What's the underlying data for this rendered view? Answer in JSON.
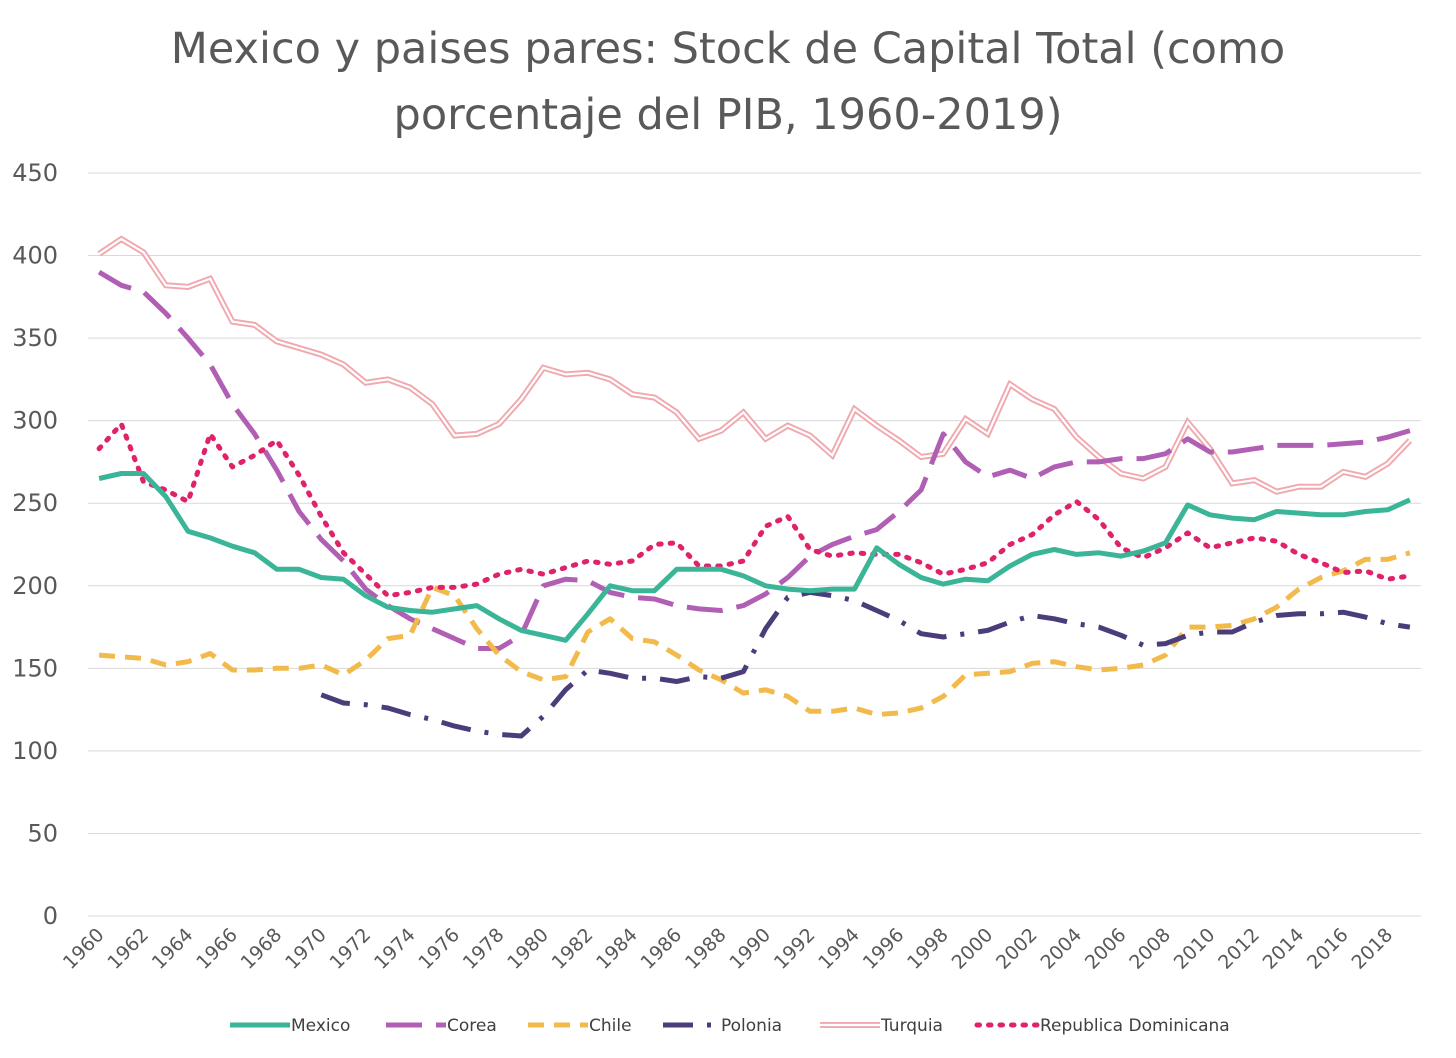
{
  "chart_data": {
    "type": "line",
    "title": "Mexico y paises pares: Stock de Capital Total (como porcentaje del PIB, 1960-2019)",
    "title_lines": [
      "Mexico y paises pares: Stock de Capital Total (como",
      "porcentaje del PIB, 1960-2019)"
    ],
    "xlabel": "",
    "ylabel": "",
    "ylim": [
      0,
      450
    ],
    "yticks": [
      0,
      50,
      100,
      150,
      200,
      250,
      300,
      350,
      400,
      450
    ],
    "x": [
      1960,
      1961,
      1962,
      1963,
      1964,
      1965,
      1966,
      1967,
      1968,
      1969,
      1970,
      1971,
      1972,
      1973,
      1974,
      1975,
      1976,
      1977,
      1978,
      1979,
      1980,
      1981,
      1982,
      1983,
      1984,
      1985,
      1986,
      1987,
      1988,
      1989,
      1990,
      1991,
      1992,
      1993,
      1994,
      1995,
      1996,
      1997,
      1998,
      1999,
      2000,
      2001,
      2002,
      2003,
      2004,
      2005,
      2006,
      2007,
      2008,
      2009,
      2010,
      2011,
      2012,
      2013,
      2014,
      2015,
      2016,
      2017,
      2018,
      2019
    ],
    "xticks": [
      1960,
      1962,
      1964,
      1966,
      1968,
      1970,
      1972,
      1974,
      1976,
      1978,
      1980,
      1982,
      1984,
      1986,
      1988,
      1990,
      1992,
      1994,
      1996,
      1998,
      2000,
      2002,
      2004,
      2006,
      2008,
      2010,
      2012,
      2014,
      2016,
      2018
    ],
    "grid": true,
    "legend_position": "bottom",
    "series": [
      {
        "name": "Mexico",
        "color": "#3bb597",
        "dash": "solid",
        "values": [
          265,
          268,
          268,
          254,
          233,
          229,
          224,
          220,
          210,
          210,
          205,
          204,
          194,
          187,
          185,
          184,
          186,
          188,
          180,
          173,
          170,
          167,
          183,
          200,
          197,
          197,
          210,
          210,
          210,
          206,
          200,
          198,
          197,
          198,
          198,
          223,
          213,
          205,
          201,
          204,
          203,
          212,
          219,
          222,
          219,
          220,
          218,
          221,
          226,
          249,
          243,
          241,
          240,
          245,
          244,
          243,
          243,
          245,
          246,
          252
        ]
      },
      {
        "name": "Corea",
        "color": "#b15fb4",
        "dash": "long-dash",
        "values": [
          390,
          382,
          378,
          365,
          350,
          334,
          310,
          292,
          270,
          245,
          228,
          215,
          198,
          188,
          180,
          174,
          168,
          162,
          162,
          170,
          200,
          204,
          203,
          196,
          193,
          192,
          188,
          186,
          185,
          188,
          195,
          205,
          218,
          225,
          230,
          234,
          245,
          258,
          292,
          275,
          266,
          270,
          265,
          272,
          275,
          275,
          277,
          277,
          280,
          289,
          281,
          281,
          283,
          285,
          285,
          285,
          286,
          287,
          290,
          294
        ]
      },
      {
        "name": "Chile",
        "color": "#f2b94b",
        "dash": "dash",
        "values": [
          158,
          157,
          156,
          152,
          154,
          159,
          149,
          149,
          150,
          150,
          152,
          146,
          155,
          168,
          170,
          199,
          194,
          174,
          158,
          148,
          143,
          145,
          172,
          180,
          168,
          166,
          158,
          149,
          143,
          135,
          137,
          133,
          124,
          124,
          126,
          122,
          123,
          126,
          133,
          146,
          147,
          148,
          153,
          154,
          151,
          149,
          150,
          152,
          158,
          175,
          175,
          176,
          180,
          187,
          198,
          205,
          209,
          216,
          216,
          220
        ]
      },
      {
        "name": "Polonia",
        "color": "#4b3d7a",
        "dash": "dash-dot",
        "values": [
          null,
          null,
          null,
          null,
          null,
          null,
          null,
          null,
          null,
          null,
          134,
          129,
          128,
          126,
          122,
          119,
          115,
          112,
          110,
          109,
          121,
          137,
          149,
          147,
          144,
          144,
          142,
          145,
          144,
          148,
          174,
          193,
          196,
          194,
          191,
          185,
          179,
          171,
          169,
          171,
          173,
          178,
          182,
          180,
          177,
          175,
          170,
          164,
          165,
          170,
          172,
          172,
          178,
          182,
          183,
          183,
          184,
          181,
          177,
          175
        ]
      },
      {
        "name": "Turquia",
        "color": "#f0a8ae",
        "dash": "double",
        "values": [
          401,
          410,
          402,
          382,
          381,
          386,
          360,
          358,
          348,
          344,
          340,
          334,
          323,
          325,
          320,
          310,
          291,
          292,
          298,
          313,
          332,
          328,
          329,
          325,
          316,
          314,
          305,
          289,
          294,
          305,
          289,
          297,
          291,
          279,
          307,
          297,
          288,
          278,
          280,
          301,
          292,
          322,
          313,
          307,
          290,
          278,
          268,
          265,
          272,
          299,
          283,
          262,
          264,
          257,
          260,
          260,
          269,
          266,
          274,
          288
        ]
      },
      {
        "name": "Republica Dominicana",
        "color": "#e0226b",
        "dash": "dot",
        "values": [
          283,
          298,
          263,
          258,
          251,
          292,
          272,
          279,
          288,
          267,
          242,
          220,
          207,
          194,
          196,
          199,
          199,
          201,
          207,
          210,
          207,
          211,
          215,
          213,
          215,
          225,
          226,
          212,
          212,
          215,
          236,
          242,
          222,
          218,
          220,
          219,
          219,
          214,
          207,
          210,
          214,
          225,
          231,
          243,
          251,
          240,
          223,
          217,
          223,
          232,
          223,
          226,
          229,
          227,
          219,
          214,
          208,
          209,
          204,
          206
        ]
      }
    ]
  }
}
